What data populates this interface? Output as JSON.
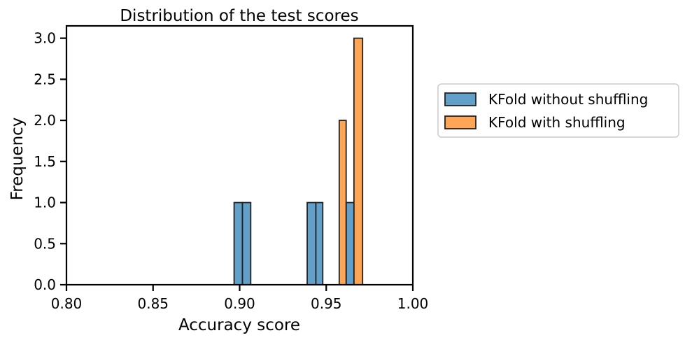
{
  "chart_data": {
    "type": "bar",
    "title": "Distribution of the test scores",
    "xlabel": "Accuracy score",
    "ylabel": "Frequency",
    "xlim": [
      0.8,
      1.0
    ],
    "ylim": [
      0,
      3.15
    ],
    "xticks": [
      "0.80",
      "0.85",
      "0.90",
      "0.95",
      "1.00"
    ],
    "yticks": [
      "0.0",
      "0.5",
      "1.0",
      "1.5",
      "2.0",
      "2.5",
      "3.0"
    ],
    "legend_position": "outside-right",
    "series": [
      {
        "name": "KFold without shuffling",
        "color": "#1f77b4",
        "bins": [
          {
            "x0": 0.8968,
            "x1": 0.9016,
            "count": 1
          },
          {
            "x0": 0.9016,
            "x1": 0.9064,
            "count": 1
          },
          {
            "x0": 0.939,
            "x1": 0.944,
            "count": 1
          },
          {
            "x0": 0.944,
            "x1": 0.948,
            "count": 1
          },
          {
            "x0": 0.9615,
            "x1": 0.966,
            "count": 1
          }
        ]
      },
      {
        "name": "KFold with shuffling",
        "color": "#ff7f0e",
        "bins": [
          {
            "x0": 0.9575,
            "x1": 0.9615,
            "count": 2
          },
          {
            "x0": 0.966,
            "x1": 0.971,
            "count": 3
          }
        ]
      }
    ]
  }
}
